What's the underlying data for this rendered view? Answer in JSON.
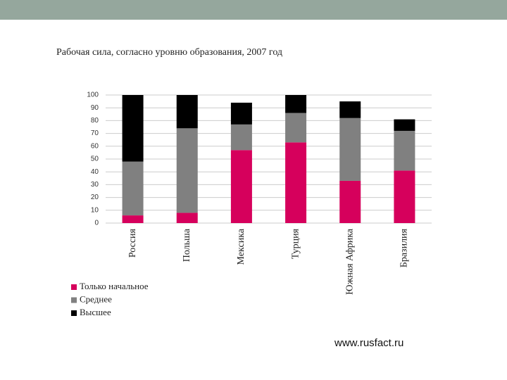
{
  "chart_data": {
    "type": "stacked_bar",
    "title": "Рабочая сила, согласно уровню образования, 2007 год",
    "categories": [
      "Россия",
      "Польша",
      "Мексика",
      "Турция",
      "Южная Африка",
      "Бразилия"
    ],
    "series": [
      {
        "name": "Только начальное",
        "color": "#d6005c",
        "values": [
          6,
          8,
          57,
          63,
          33,
          41
        ]
      },
      {
        "name": "Среднее",
        "color": "#808080",
        "values": [
          42,
          66,
          20,
          23,
          49,
          31
        ]
      },
      {
        "name": "Высшее",
        "color": "#000000",
        "values": [
          52,
          26,
          17,
          14,
          13,
          9
        ]
      }
    ],
    "ylim": [
      0,
      100
    ],
    "yticks": [
      0,
      10,
      20,
      30,
      40,
      50,
      60,
      70,
      80,
      90,
      100
    ],
    "grid": true
  },
  "footer": "www.rusfact.ru"
}
